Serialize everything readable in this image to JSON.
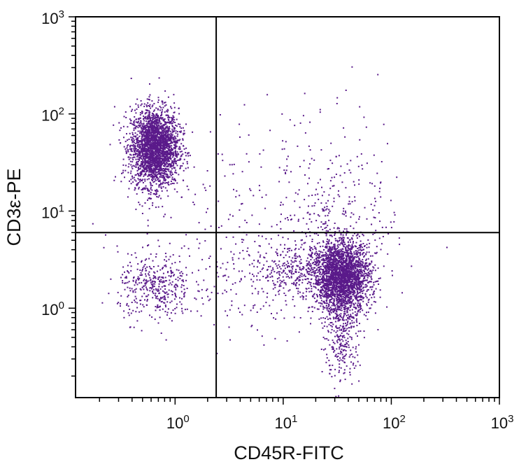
{
  "chart_data": {
    "type": "scatter",
    "title": "",
    "xlabel": "CD45R-FITC",
    "ylabel": "CD3ε-PE",
    "xscale": "log",
    "yscale": "log",
    "xlim": [
      0.12,
      1000
    ],
    "ylim": [
      0.12,
      1000
    ],
    "x_ticks": [
      {
        "base": "10",
        "exp": "0"
      },
      {
        "base": "10",
        "exp": "1"
      },
      {
        "base": "10",
        "exp": "2"
      },
      {
        "base": "10",
        "exp": "3"
      }
    ],
    "y_ticks": [
      {
        "base": "10",
        "exp": "0"
      },
      {
        "base": "10",
        "exp": "1"
      },
      {
        "base": "10",
        "exp": "2"
      },
      {
        "base": "10",
        "exp": "3"
      }
    ],
    "quadrant_gate": {
      "x": 2.4,
      "y": 6
    },
    "point_color": "#5a1a8a",
    "populations": [
      {
        "x_center": 0.65,
        "y_center": 45,
        "log_spread_x": 0.11,
        "log_spread_y": 0.2,
        "count": 2600
      },
      {
        "x_center": 0.65,
        "y_center": 1.6,
        "log_spread_x": 0.17,
        "log_spread_y": 0.17,
        "count": 380
      },
      {
        "x_center": 35,
        "y_center": 2.1,
        "log_spread_x": 0.13,
        "log_spread_y": 0.18,
        "count": 2500
      },
      {
        "x_center": 35,
        "y_center": 0.5,
        "log_spread_x": 0.08,
        "log_spread_y": 0.25,
        "count": 300
      },
      {
        "x_center": 14,
        "y_center": 2.4,
        "log_spread_x": 0.25,
        "log_spread_y": 0.13,
        "count": 350
      },
      {
        "x_center": 5,
        "y_center": 2,
        "log_spread_x": 0.35,
        "log_spread_y": 0.3,
        "count": 180
      },
      {
        "x_center": 30,
        "y_center": 9,
        "log_spread_x": 0.3,
        "log_spread_y": 0.3,
        "count": 220
      },
      {
        "x_center": 20,
        "y_center": 20,
        "log_spread_x": 0.4,
        "log_spread_y": 0.5,
        "count": 120
      },
      {
        "x_center": 1.5,
        "y_center": 8,
        "log_spread_x": 0.4,
        "log_spread_y": 0.45,
        "count": 80
      }
    ]
  }
}
